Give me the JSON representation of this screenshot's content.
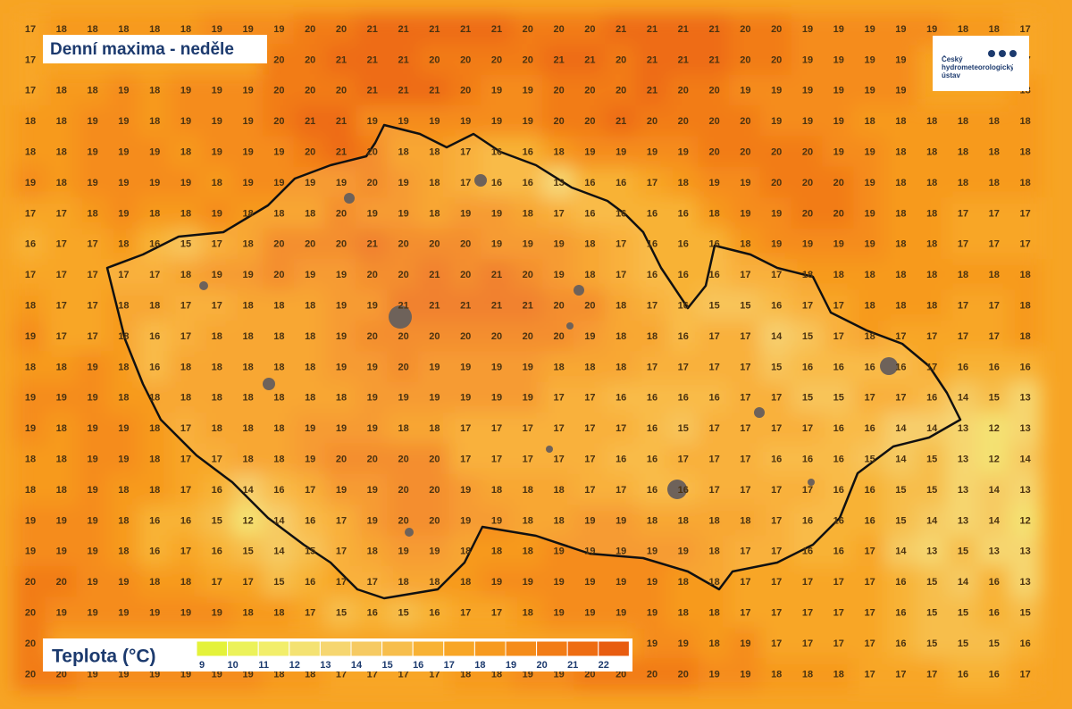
{
  "title": "Denní maxima - neděle",
  "logo": "Český hydrometeorologický ústav",
  "grid": [
    [
      17,
      18,
      18,
      18,
      18,
      18,
      19,
      19,
      19,
      20,
      20,
      21,
      21,
      21,
      21,
      21,
      20,
      20,
      20,
      21,
      21,
      21,
      21,
      20,
      20,
      19,
      19,
      19,
      19,
      19,
      18,
      18,
      17
    ],
    [
      17,
      null,
      null,
      null,
      null,
      null,
      null,
      null,
      20,
      20,
      21,
      21,
      21,
      20,
      20,
      20,
      20,
      21,
      21,
      20,
      21,
      21,
      21,
      20,
      20,
      19,
      19,
      19,
      19,
      null,
      null,
      null,
      17
    ],
    [
      17,
      18,
      18,
      19,
      18,
      19,
      19,
      19,
      20,
      20,
      20,
      21,
      21,
      21,
      20,
      19,
      19,
      20,
      20,
      20,
      21,
      20,
      20,
      19,
      19,
      19,
      19,
      19,
      19,
      null,
      null,
      null,
      18
    ],
    [
      18,
      18,
      19,
      19,
      18,
      19,
      19,
      19,
      20,
      21,
      21,
      19,
      19,
      19,
      19,
      19,
      19,
      20,
      20,
      21,
      20,
      20,
      20,
      20,
      19,
      19,
      19,
      18,
      18,
      18,
      18,
      18,
      18
    ],
    [
      18,
      18,
      19,
      19,
      19,
      18,
      19,
      19,
      19,
      20,
      21,
      20,
      18,
      18,
      17,
      16,
      16,
      18,
      19,
      19,
      19,
      19,
      20,
      20,
      20,
      20,
      19,
      19,
      18,
      18,
      18,
      18,
      18
    ],
    [
      19,
      18,
      19,
      19,
      19,
      19,
      18,
      19,
      19,
      19,
      19,
      20,
      19,
      18,
      17,
      16,
      16,
      13,
      16,
      16,
      17,
      18,
      19,
      19,
      20,
      20,
      20,
      19,
      18,
      18,
      18,
      18,
      18
    ],
    [
      17,
      17,
      18,
      19,
      18,
      18,
      19,
      18,
      18,
      18,
      20,
      19,
      19,
      18,
      19,
      19,
      18,
      17,
      16,
      16,
      16,
      16,
      18,
      19,
      19,
      20,
      20,
      19,
      18,
      18,
      17,
      17,
      17
    ],
    [
      16,
      17,
      17,
      18,
      16,
      15,
      17,
      18,
      20,
      20,
      20,
      21,
      20,
      20,
      20,
      19,
      19,
      19,
      18,
      17,
      16,
      16,
      16,
      18,
      19,
      19,
      19,
      19,
      18,
      18,
      17,
      17,
      17
    ],
    [
      17,
      17,
      17,
      17,
      17,
      18,
      19,
      19,
      20,
      19,
      19,
      20,
      20,
      21,
      20,
      21,
      20,
      19,
      18,
      17,
      16,
      16,
      16,
      17,
      17,
      18,
      18,
      18,
      18,
      18,
      18,
      18,
      18
    ],
    [
      18,
      17,
      17,
      18,
      18,
      17,
      17,
      18,
      18,
      18,
      19,
      19,
      21,
      21,
      21,
      21,
      21,
      20,
      20,
      18,
      17,
      16,
      15,
      15,
      16,
      17,
      17,
      18,
      18,
      18,
      17,
      17,
      18
    ],
    [
      19,
      17,
      17,
      18,
      16,
      17,
      18,
      18,
      18,
      18,
      19,
      20,
      20,
      20,
      20,
      20,
      20,
      20,
      19,
      18,
      18,
      16,
      17,
      17,
      14,
      15,
      17,
      18,
      17,
      17,
      17,
      17,
      18
    ],
    [
      18,
      18,
      19,
      18,
      16,
      18,
      18,
      18,
      18,
      18,
      19,
      19,
      20,
      19,
      19,
      19,
      19,
      18,
      18,
      18,
      17,
      17,
      17,
      17,
      15,
      16,
      16,
      16,
      16,
      17,
      16,
      16,
      16
    ],
    [
      19,
      19,
      19,
      18,
      18,
      18,
      18,
      18,
      18,
      18,
      18,
      19,
      19,
      19,
      19,
      19,
      19,
      17,
      17,
      16,
      16,
      16,
      16,
      17,
      17,
      15,
      15,
      17,
      17,
      16,
      14,
      15,
      13
    ],
    [
      19,
      18,
      19,
      19,
      18,
      17,
      18,
      18,
      18,
      19,
      19,
      19,
      18,
      18,
      17,
      17,
      17,
      17,
      17,
      17,
      16,
      15,
      17,
      17,
      17,
      17,
      16,
      16,
      14,
      14,
      13,
      12,
      13
    ],
    [
      18,
      18,
      19,
      19,
      18,
      17,
      17,
      18,
      18,
      19,
      20,
      20,
      20,
      20,
      17,
      17,
      17,
      17,
      17,
      16,
      16,
      17,
      17,
      17,
      16,
      16,
      16,
      15,
      14,
      15,
      13,
      12,
      14
    ],
    [
      18,
      18,
      19,
      18,
      18,
      17,
      16,
      14,
      16,
      17,
      19,
      19,
      20,
      20,
      19,
      18,
      18,
      18,
      17,
      17,
      16,
      16,
      17,
      17,
      17,
      17,
      16,
      16,
      15,
      15,
      13,
      14,
      13
    ],
    [
      19,
      19,
      19,
      18,
      16,
      16,
      15,
      12,
      14,
      16,
      17,
      19,
      20,
      20,
      19,
      19,
      18,
      18,
      19,
      19,
      18,
      18,
      18,
      18,
      17,
      16,
      16,
      16,
      15,
      14,
      13,
      14,
      12
    ],
    [
      19,
      19,
      19,
      18,
      16,
      17,
      16,
      15,
      14,
      15,
      17,
      18,
      19,
      19,
      18,
      18,
      18,
      19,
      19,
      19,
      19,
      19,
      18,
      17,
      17,
      16,
      16,
      17,
      14,
      13,
      15,
      13,
      13
    ],
    [
      20,
      20,
      19,
      19,
      18,
      18,
      17,
      17,
      15,
      16,
      17,
      17,
      18,
      18,
      18,
      19,
      19,
      19,
      19,
      19,
      19,
      18,
      18,
      17,
      17,
      17,
      17,
      17,
      16,
      15,
      14,
      16,
      13
    ],
    [
      20,
      19,
      19,
      19,
      19,
      19,
      19,
      18,
      18,
      17,
      15,
      16,
      15,
      16,
      17,
      17,
      18,
      19,
      19,
      19,
      19,
      18,
      18,
      17,
      17,
      17,
      17,
      17,
      16,
      15,
      15,
      16,
      15
    ],
    [
      20,
      null,
      null,
      null,
      null,
      null,
      null,
      null,
      null,
      null,
      null,
      null,
      null,
      null,
      null,
      null,
      null,
      null,
      null,
      null,
      19,
      19,
      18,
      19,
      17,
      17,
      17,
      17,
      16,
      15,
      15,
      15,
      16
    ],
    [
      20,
      20,
      19,
      19,
      19,
      19,
      19,
      19,
      18,
      18,
      17,
      17,
      17,
      17,
      18,
      18,
      19,
      19,
      20,
      20,
      20,
      20,
      19,
      19,
      18,
      18,
      18,
      17,
      17,
      17,
      16,
      16,
      17
    ]
  ],
  "legend": {
    "title": "Teplota (°C)",
    "levels": [
      {
        "value": 9,
        "color": "#e4f23a"
      },
      {
        "value": 10,
        "color": "#ecf25a"
      },
      {
        "value": 11,
        "color": "#f2ee6a"
      },
      {
        "value": 12,
        "color": "#f4e272"
      },
      {
        "value": 13,
        "color": "#f6d670"
      },
      {
        "value": 14,
        "color": "#f6ca62"
      },
      {
        "value": 15,
        "color": "#f7be4c"
      },
      {
        "value": 16,
        "color": "#f8b234"
      },
      {
        "value": 17,
        "color": "#f8a626"
      },
      {
        "value": 18,
        "color": "#f79a1e"
      },
      {
        "value": 19,
        "color": "#f58c1a"
      },
      {
        "value": 20,
        "color": "#f27c16"
      },
      {
        "value": 21,
        "color": "#ee6c12"
      },
      {
        "value": 22,
        "color": "#e85c10"
      }
    ]
  }
}
